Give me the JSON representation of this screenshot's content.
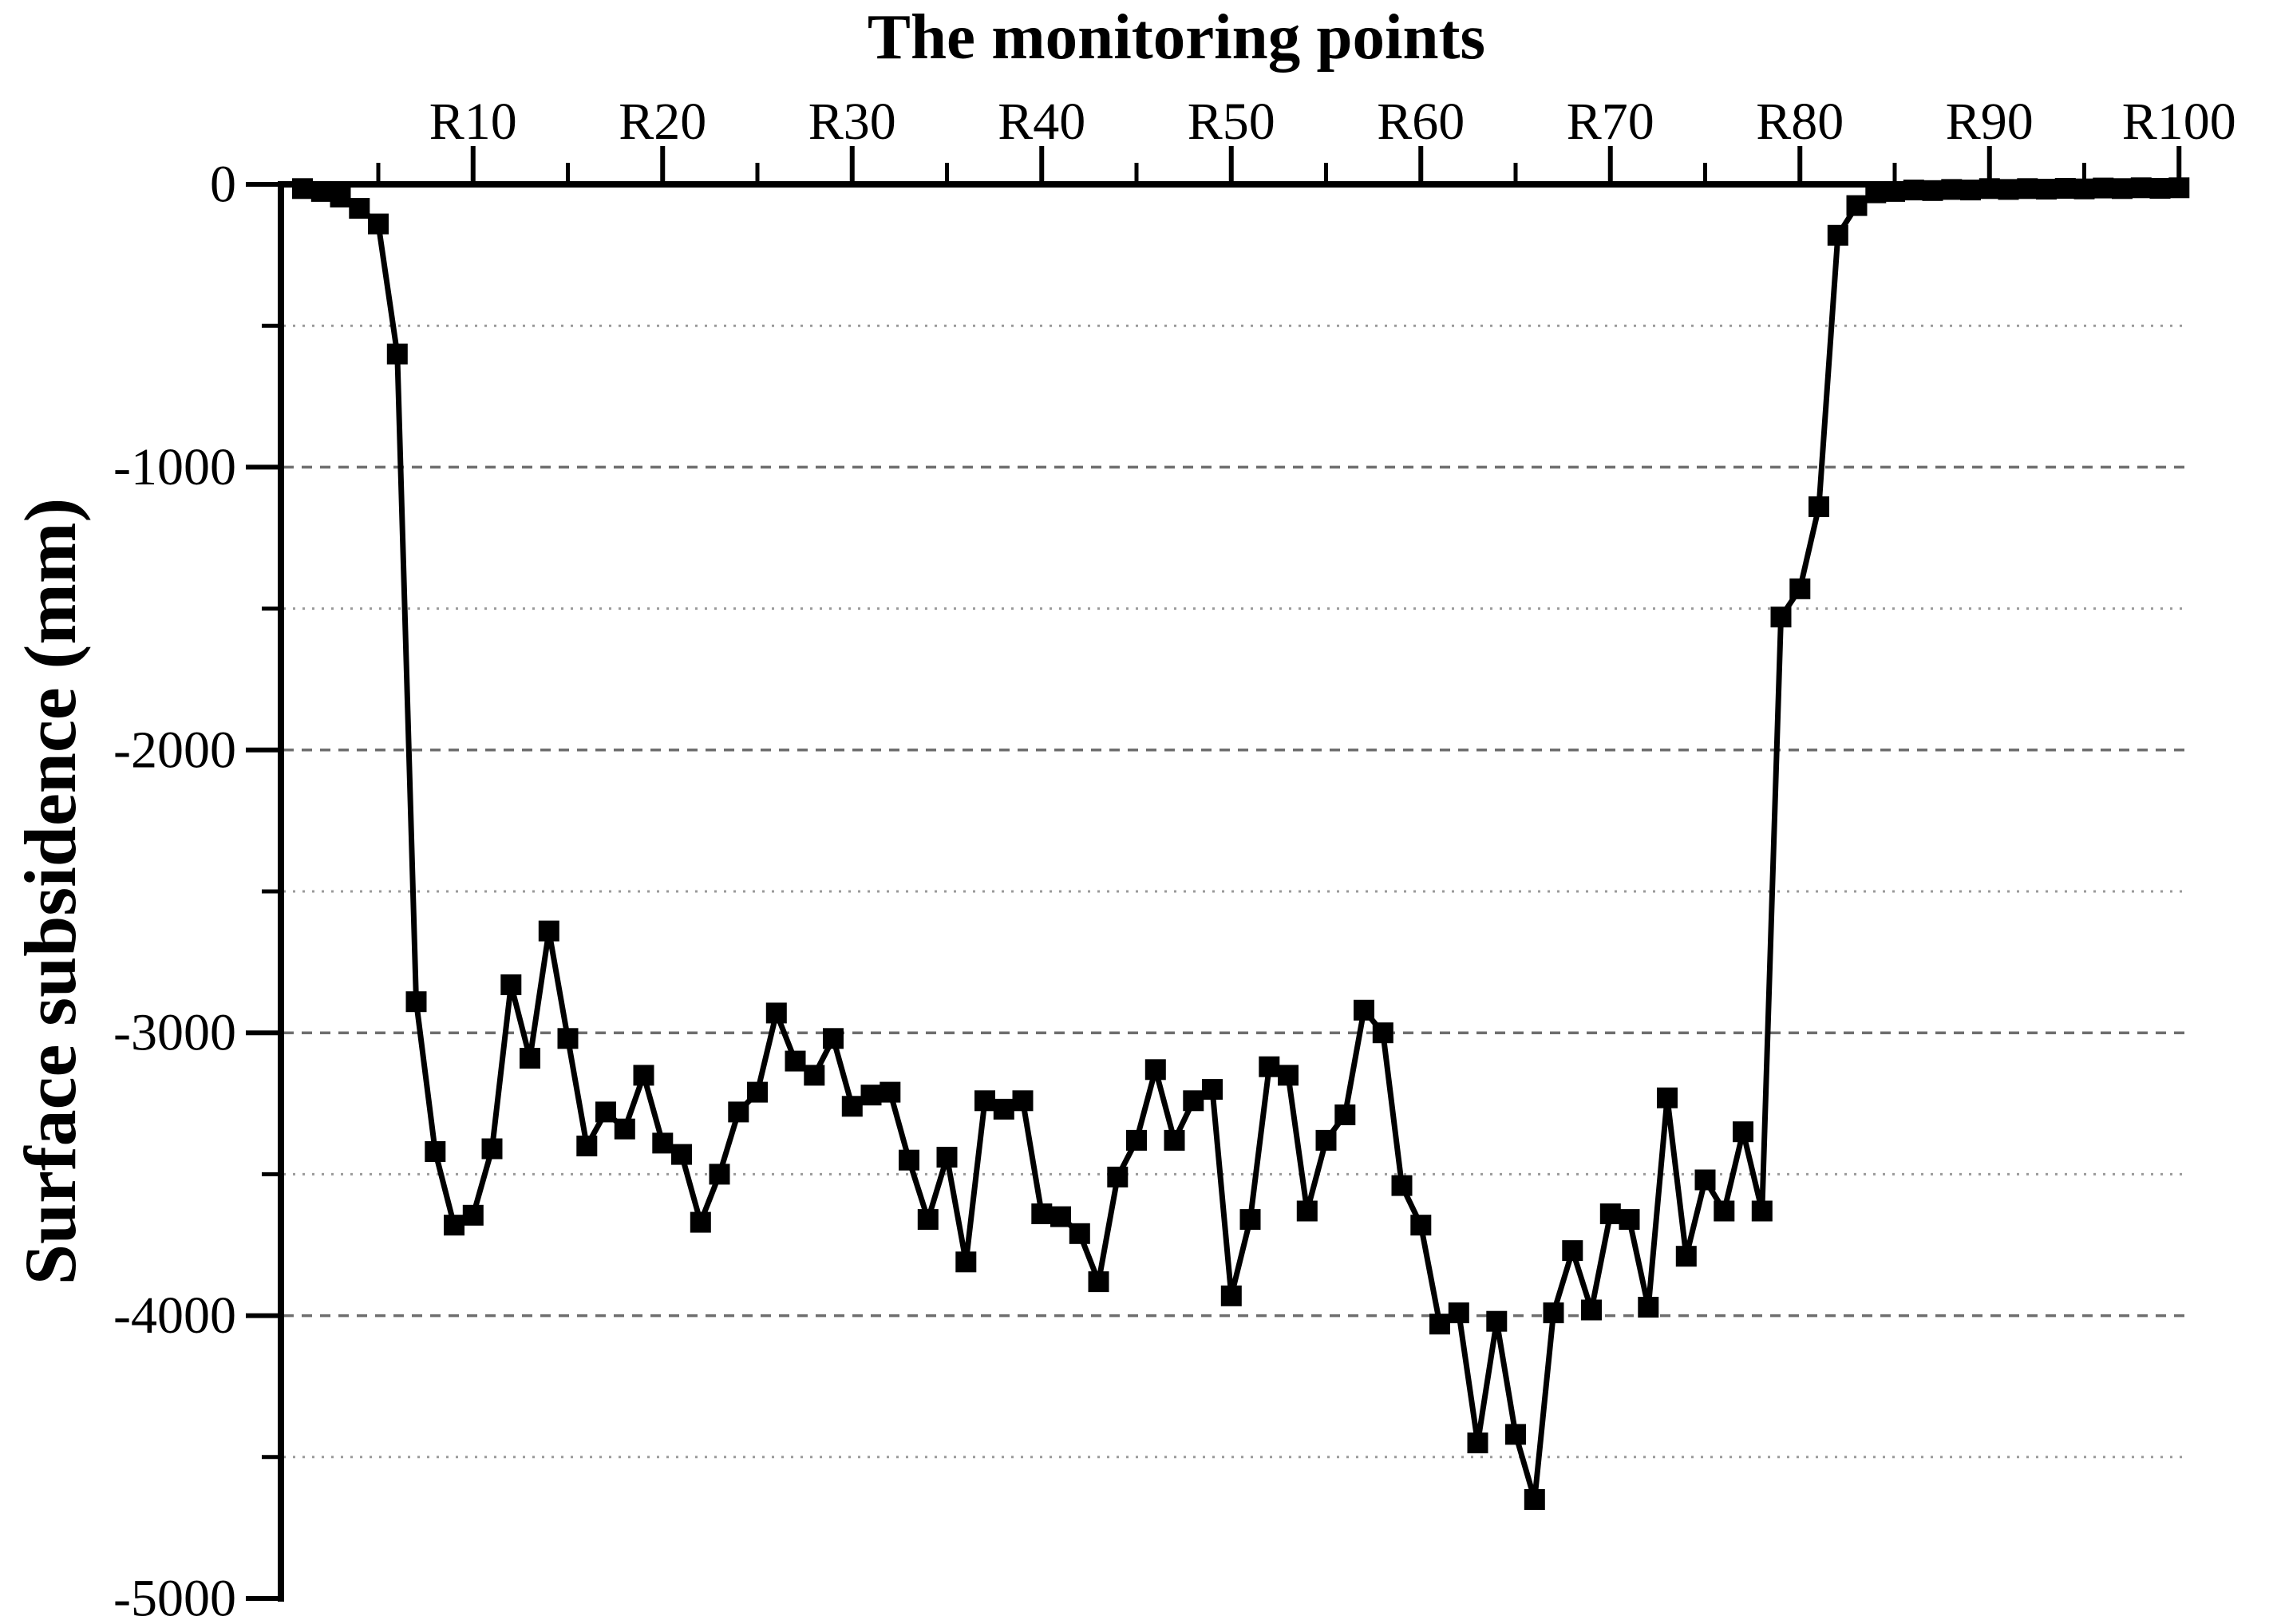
{
  "chart_data": {
    "type": "line",
    "title": "The monitoring points",
    "ylabel": "Surface subsidence (mm)",
    "x_axis_position": "top",
    "x_tick_labels": [
      "R10",
      "R20",
      "R30",
      "R40",
      "R50",
      "R60",
      "R70",
      "R80",
      "R90",
      "R100"
    ],
    "x_major_tick_points": [
      10,
      20,
      30,
      40,
      50,
      60,
      70,
      80,
      90,
      100
    ],
    "x_minor_tick_points": [
      5,
      15,
      25,
      35,
      45,
      55,
      65,
      75,
      85,
      95
    ],
    "y_tick_labels": [
      "0",
      "-1000",
      "-2000",
      "-3000",
      "-4000",
      "-5000"
    ],
    "y_major_ticks": [
      0,
      -1000,
      -2000,
      -3000,
      -4000,
      -5000
    ],
    "y_minor_ticks": [
      -500,
      -1500,
      -2500,
      -3500,
      -4500
    ],
    "ylim": [
      -5000,
      0
    ],
    "x_range_points": [
      1,
      100
    ],
    "grid": "horizontal dotted lines every 500 mm from -500 to -4500",
    "legend": "none",
    "series": [
      {
        "name": "Surface subsidence",
        "marker": "filled-square",
        "line_color": "#000000",
        "values": [
          -15,
          -25,
          -45,
          -85,
          -140,
          -600,
          -2890,
          -3420,
          -3680,
          -3645,
          -3410,
          -2830,
          -3090,
          -2640,
          -3020,
          -3400,
          -3280,
          -3340,
          -3150,
          -3390,
          -3430,
          -3670,
          -3500,
          -3280,
          -3210,
          -2930,
          -3100,
          -3150,
          -3020,
          -3260,
          -3220,
          -3210,
          -3450,
          -3660,
          -3440,
          -3810,
          -3240,
          -3270,
          -3240,
          -3640,
          -3650,
          -3710,
          -3880,
          -3510,
          -3380,
          -3130,
          -3380,
          -3240,
          -3200,
          -3930,
          -3660,
          -3120,
          -3150,
          -3630,
          -3380,
          -3290,
          -2920,
          -3000,
          -3540,
          -3680,
          -4030,
          -3990,
          -4450,
          -4020,
          -4420,
          -4650,
          -3990,
          -3770,
          -3980,
          -3640,
          -3660,
          -3970,
          -3230,
          -3790,
          -3520,
          -3630,
          -3350,
          -3630,
          -1530,
          -1430,
          -1140,
          -180,
          -75,
          -30,
          -25,
          -20,
          -22,
          -18,
          -20,
          -15,
          -18,
          -15,
          -17,
          -14,
          -16,
          -13,
          -15,
          -12,
          -14,
          -12
        ]
      }
    ]
  },
  "colors": {
    "background": "#ffffff",
    "axis": "#000000",
    "text": "#000000",
    "data_line": "#000000",
    "marker": "#000000",
    "grid_major": "#6e6e6e",
    "grid_minor": "#9a9a9a"
  }
}
